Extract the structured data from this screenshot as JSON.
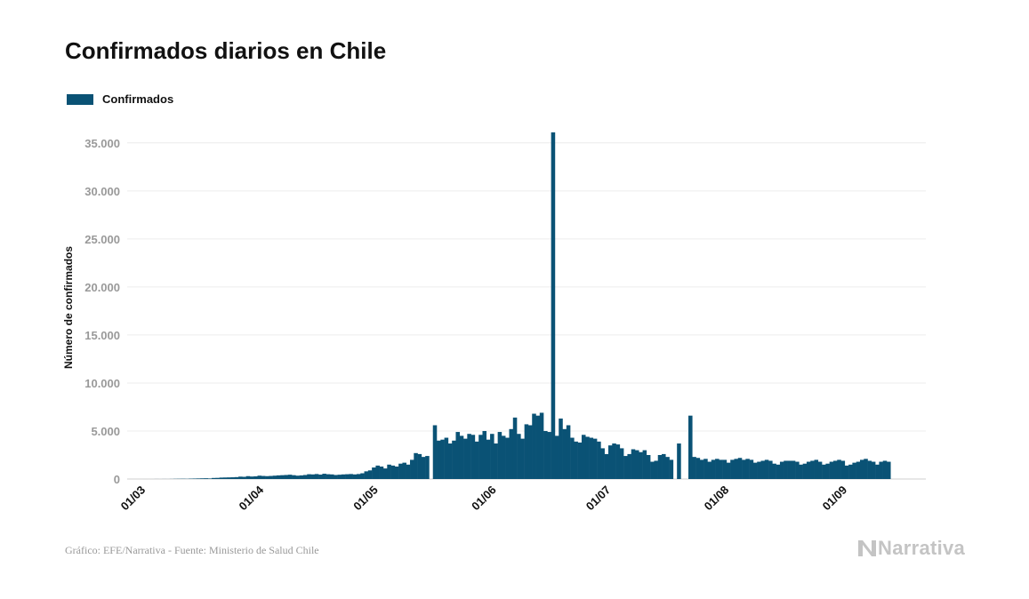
{
  "chart_data": {
    "type": "bar",
    "title": "Confirmados diarios en Chile",
    "ylabel": "Número de confirmados",
    "xlabel": "",
    "ylim": [
      0,
      36000
    ],
    "y_ticks": [
      "0",
      "5.000",
      "10.000",
      "15.000",
      "20.000",
      "25.000",
      "30.000",
      "35.000"
    ],
    "y_tick_values": [
      0,
      5000,
      10000,
      15000,
      20000,
      25000,
      30000,
      35000
    ],
    "x_ticks": [
      "01/03",
      "01/04",
      "01/05",
      "01/06",
      "01/07",
      "01/08",
      "01/09"
    ],
    "x_tick_dates": [
      "2020-03-01",
      "2020-04-01",
      "2020-05-01",
      "2020-06-01",
      "2020-07-01",
      "2020-08-01",
      "2020-09-01"
    ],
    "x_start": "2020-03-01",
    "grid": true,
    "legend_position": "top-left",
    "series": [
      {
        "name": "Confirmados",
        "color": "#0a5275",
        "values": [
          0,
          0,
          0,
          1,
          0,
          1,
          5,
          2,
          6,
          4,
          10,
          20,
          25,
          30,
          22,
          40,
          50,
          60,
          70,
          80,
          60,
          110,
          120,
          150,
          160,
          170,
          180,
          200,
          250,
          230,
          300,
          260,
          280,
          350,
          320,
          300,
          320,
          350,
          380,
          400,
          420,
          450,
          400,
          350,
          380,
          420,
          500,
          480,
          520,
          460,
          550,
          500,
          480,
          420,
          450,
          480,
          500,
          520,
          480,
          520,
          600,
          800,
          900,
          1200,
          1400,
          1300,
          1100,
          1500,
          1400,
          1300,
          1600,
          1700,
          1500,
          2000,
          2700,
          2600,
          2300,
          2400,
          0,
          5600,
          4000,
          4100,
          4300,
          3700,
          4000,
          4900,
          4500,
          4200,
          4700,
          4600,
          3900,
          4600,
          5000,
          4100,
          4700,
          3700,
          4900,
          4500,
          4300,
          5200,
          6400,
          4700,
          4200,
          5700,
          5600,
          6800,
          6600,
          6900,
          5000,
          4900,
          36100,
          4500,
          6300,
          5200,
          5600,
          4300,
          3900,
          3800,
          4600,
          4400,
          4300,
          4200,
          3900,
          3200,
          2600,
          3500,
          3700,
          3600,
          3200,
          2400,
          2600,
          3100,
          3000,
          2800,
          3000,
          2500,
          1800,
          1900,
          2500,
          2600,
          2300,
          2000,
          0,
          3700,
          0,
          0,
          6600,
          2300,
          2200,
          2000,
          2100,
          1800,
          2000,
          2100,
          2000,
          2000,
          1700,
          2000,
          2100,
          2200,
          2000,
          2100,
          2000,
          1700,
          1800,
          1900,
          2000,
          1900,
          1600,
          1500,
          1800,
          1900,
          1900,
          1900,
          1800,
          1500,
          1600,
          1800,
          1900,
          2000,
          1800,
          1500,
          1600,
          1800,
          1900,
          2000,
          1900,
          1400,
          1500,
          1700,
          1800,
          2000,
          2100,
          1900,
          1800,
          1500,
          1800,
          1900,
          1800
        ]
      }
    ]
  },
  "footer": {
    "source": "Gráfico: EFE/Narrativa - Fuente: Ministerio de Salud Chile",
    "brand": "Narrativa"
  }
}
